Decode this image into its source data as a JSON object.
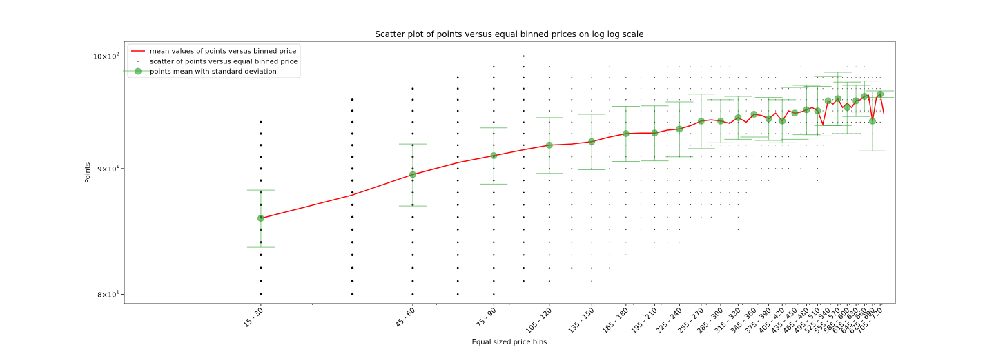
{
  "chart_data": {
    "type": "scatter",
    "title": "Scatter plot of points versus equal binned prices on log log scale",
    "xlabel": "Equal sized price bins",
    "ylabel": "Points",
    "xscale": "log",
    "yscale": "log",
    "xlim": [
      10.5,
      775
    ],
    "ylim": [
      79.3,
      101.4
    ],
    "y_ticks": [
      {
        "value": 80,
        "base": "8",
        "sup": "1"
      },
      {
        "value": 90,
        "base": "9",
        "sup": "1"
      },
      {
        "value": 100,
        "base": "10",
        "sup": "2"
      }
    ],
    "x_tick_positions": [
      22.5,
      52.5,
      82.5,
      112.5,
      142.5,
      172.5,
      202.5,
      232.5,
      262.5,
      292.5,
      322.5,
      352.5,
      382.5,
      412.5,
      442.5,
      472.5,
      502.5,
      532.5,
      562.5,
      592.5,
      622.5,
      652.5,
      682.5,
      712.5
    ],
    "x_tick_labels": [
      "15 - 30",
      "45 - 60",
      "75 - 90",
      "105 - 120",
      "135 - 150",
      "165 - 180",
      "195 - 210",
      "225 - 240",
      "255 - 270",
      "285 - 300",
      "315 - 330",
      "345 - 360",
      "375 - 390",
      "405 - 420",
      "435 - 450",
      "465 - 480",
      "495 - 510",
      "525 - 540",
      "555 - 570",
      "585 - 600",
      "615 - 630",
      "645 - 660",
      "675 - 690",
      "705 - 720"
    ],
    "legend": {
      "placement": "upper left",
      "entries": [
        {
          "label": "mean values of points versus binned price",
          "kind": "line"
        },
        {
          "label": "scatter of points versus equal binned price",
          "kind": "dot"
        },
        {
          "label": "points mean with standard deviation",
          "kind": "errorbar"
        }
      ]
    },
    "series": [
      {
        "name": "mean values of points versus binned price",
        "kind": "line",
        "color": "#ff0000",
        "x": [
          22.5,
          37.5,
          52.5,
          67.5,
          82.5,
          97.5,
          112.5,
          127.5,
          142.5,
          157.5,
          172.5,
          187.5,
          202.5,
          217.5,
          232.5,
          247.5,
          262.5,
          277.5,
          292.5,
          307.5,
          322.5,
          337.5,
          352.5,
          367.5,
          382.5,
          397.5,
          412.5,
          427.5,
          442.5,
          457.5,
          472.5,
          487.5,
          502.5,
          517.5,
          532.5,
          547.5,
          562.5,
          577.5,
          592.5,
          607.5,
          622.5,
          637.5,
          652.5,
          667.5,
          682.5,
          697.5,
          712.5,
          727.5
        ],
        "y": [
          85.9,
          87.8,
          89.5,
          90.5,
          91.1,
          91.6,
          92.0,
          92.1,
          92.3,
          92.7,
          93.0,
          93.05,
          93.05,
          93.3,
          93.4,
          93.7,
          94.1,
          94.2,
          94.1,
          93.9,
          94.4,
          94.0,
          94.7,
          94.6,
          94.3,
          94.8,
          94.1,
          95.0,
          94.8,
          94.9,
          95.1,
          95.3,
          95.0,
          93.8,
          95.9,
          95.6,
          96.1,
          95.3,
          95.7,
          95.3,
          95.9,
          96.0,
          96.3,
          96.4,
          94.1,
          96.2,
          96.5,
          94.7
        ]
      },
      {
        "name": "scatter of points versus equal binned price",
        "kind": "scatter",
        "color": "#000000",
        "bins": [
          {
            "x": 22.5,
            "ymin": 80,
            "ymax": 94,
            "density": 3.0
          },
          {
            "x": 37.5,
            "ymin": 80,
            "ymax": 96,
            "density": 3.0
          },
          {
            "x": 52.5,
            "ymin": 80,
            "ymax": 97,
            "density": 2.6
          },
          {
            "x": 67.5,
            "ymin": 80,
            "ymax": 98,
            "density": 2.4
          },
          {
            "x": 82.5,
            "ymin": 80,
            "ymax": 99,
            "density": 2.2
          },
          {
            "x": 97.5,
            "ymin": 81,
            "ymax": 100,
            "density": 2.0
          },
          {
            "x": 112.5,
            "ymin": 81,
            "ymax": 99,
            "density": 1.8
          },
          {
            "x": 127.5,
            "ymin": 82,
            "ymax": 98,
            "density": 1.6
          },
          {
            "x": 142.5,
            "ymin": 81,
            "ymax": 98,
            "density": 1.4
          },
          {
            "x": 157.5,
            "ymin": 82,
            "ymax": 100,
            "density": 1.3
          },
          {
            "x": 172.5,
            "ymin": 83,
            "ymax": 98,
            "density": 1.2
          },
          {
            "x": 187.5,
            "ymin": 84,
            "ymax": 98,
            "density": 1.1
          },
          {
            "x": 202.5,
            "ymin": 84,
            "ymax": 98,
            "density": 1.1
          },
          {
            "x": 217.5,
            "ymin": 84,
            "ymax": 100,
            "density": 1.0
          },
          {
            "x": 232.5,
            "ymin": 84,
            "ymax": 100,
            "density": 1.0
          },
          {
            "x": 247.5,
            "ymin": 86,
            "ymax": 99,
            "density": 1.0
          },
          {
            "x": 262.5,
            "ymin": 86,
            "ymax": 100,
            "density": 1.0
          },
          {
            "x": 277.5,
            "ymin": 86,
            "ymax": 100,
            "density": 1.0
          },
          {
            "x": 292.5,
            "ymin": 87,
            "ymax": 99,
            "density": 1.0
          },
          {
            "x": 307.5,
            "ymin": 87,
            "ymax": 99,
            "density": 1.0
          },
          {
            "x": 322.5,
            "ymin": 85,
            "ymax": 98,
            "density": 1.0
          },
          {
            "x": 337.5,
            "ymin": 88,
            "ymax": 98,
            "density": 1.0
          },
          {
            "x": 352.5,
            "ymin": 89,
            "ymax": 100,
            "density": 1.0
          },
          {
            "x": 367.5,
            "ymin": 89,
            "ymax": 98,
            "density": 1.0
          },
          {
            "x": 382.5,
            "ymin": 89,
            "ymax": 98,
            "density": 1.0
          },
          {
            "x": 397.5,
            "ymin": 90,
            "ymax": 98,
            "density": 1.0
          },
          {
            "x": 412.5,
            "ymin": 90,
            "ymax": 97,
            "density": 1.0
          },
          {
            "x": 427.5,
            "ymin": 90,
            "ymax": 97,
            "density": 1.0
          },
          {
            "x": 442.5,
            "ymin": 89,
            "ymax": 100,
            "density": 1.0
          },
          {
            "x": 457.5,
            "ymin": 90,
            "ymax": 100,
            "density": 1.0
          },
          {
            "x": 472.5,
            "ymin": 91,
            "ymax": 98,
            "density": 1.0
          },
          {
            "x": 487.5,
            "ymin": 91,
            "ymax": 98,
            "density": 1.0
          },
          {
            "x": 502.5,
            "ymin": 89,
            "ymax": 98,
            "density": 1.0
          },
          {
            "x": 517.5,
            "ymin": 92,
            "ymax": 98,
            "density": 1.0
          },
          {
            "x": 532.5,
            "ymin": 92,
            "ymax": 98,
            "density": 1.0
          },
          {
            "x": 547.5,
            "ymin": 93,
            "ymax": 98,
            "density": 1.0
          },
          {
            "x": 562.5,
            "ymin": 93,
            "ymax": 98,
            "density": 1.0
          },
          {
            "x": 577.5,
            "ymin": 93,
            "ymax": 98,
            "density": 1.0
          },
          {
            "x": 592.5,
            "ymin": 93,
            "ymax": 100,
            "density": 1.0
          },
          {
            "x": 607.5,
            "ymin": 93,
            "ymax": 98,
            "density": 1.0
          },
          {
            "x": 622.5,
            "ymin": 93,
            "ymax": 100,
            "density": 1.0
          },
          {
            "x": 637.5,
            "ymin": 93,
            "ymax": 98,
            "density": 1.0
          },
          {
            "x": 652.5,
            "ymin": 94,
            "ymax": 100,
            "density": 1.0
          },
          {
            "x": 667.5,
            "ymin": 94,
            "ymax": 98,
            "density": 1.0
          },
          {
            "x": 682.5,
            "ymin": 92,
            "ymax": 98,
            "density": 1.0
          },
          {
            "x": 697.5,
            "ymin": 94,
            "ymax": 98,
            "density": 1.0
          },
          {
            "x": 712.5,
            "ymin": 94,
            "ymax": 98,
            "density": 1.0
          }
        ]
      },
      {
        "name": "points mean with standard deviation",
        "kind": "errorbar",
        "color": "#2ca02c",
        "x": [
          22.5,
          52.5,
          82.5,
          112.5,
          142.5,
          172.5,
          202.5,
          232.5,
          262.5,
          292.5,
          322.5,
          352.5,
          382.5,
          412.5,
          442.5,
          472.5,
          502.5,
          532.5,
          562.5,
          592.5,
          622.5,
          652.5,
          682.5,
          712.5
        ],
        "y": [
          85.9,
          89.5,
          91.1,
          92.0,
          92.3,
          93.0,
          93.05,
          93.4,
          94.1,
          94.1,
          94.4,
          94.7,
          94.3,
          94.1,
          94.8,
          95.1,
          95.0,
          95.9,
          96.1,
          95.3,
          95.9,
          96.3,
          94.1,
          96.5
        ],
        "yerr": [
          2.3,
          2.6,
          2.4,
          2.4,
          2.4,
          2.4,
          2.4,
          2.4,
          2.4,
          1.9,
          1.9,
          2.0,
          1.9,
          1.9,
          2.3,
          2.2,
          2.2,
          2.2,
          2.4,
          2.3,
          1.4,
          1.4,
          2.6,
          0.3
        ]
      }
    ]
  }
}
